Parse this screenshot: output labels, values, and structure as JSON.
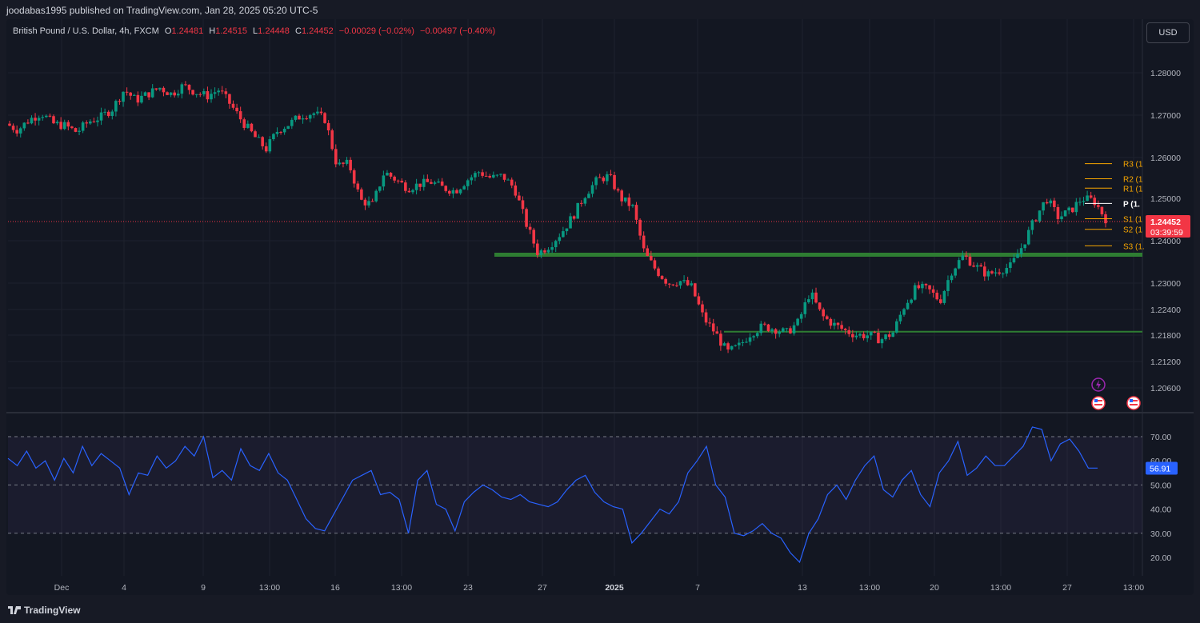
{
  "publisher": "joodabas1995 published on TradingView.com, Jan 28, 2025 05:20 UTC-5",
  "legend": {
    "symbol": "British Pound / U.S. Dollar, 4h, FXCM",
    "open_label": "O",
    "open": "1.24481",
    "high_label": "H",
    "high": "1.24515",
    "low_label": "L",
    "low": "1.24448",
    "close_label": "C",
    "close": "1.24452",
    "change": "−0.00029 (−0.02%)",
    "change2": "−0.00497 (−0.40%)"
  },
  "currency": "USD",
  "footer": {
    "brand": "TradingView"
  },
  "colors": {
    "up": "#089981",
    "down": "#f23645",
    "rsi": "#2962ff",
    "pivot": "#f7a600",
    "zone": "#2e7d32"
  },
  "chart_data": {
    "type": "candlestick",
    "price_axis": {
      "ticks": [
        "1.28000",
        "1.27000",
        "1.26000",
        "1.25000",
        "1.24000",
        "1.23000",
        "1.22400",
        "1.21800",
        "1.21200",
        "1.20600"
      ],
      "scale": "log-like"
    },
    "time_axis": {
      "ticks": [
        "Dec",
        "4",
        "9",
        "13:00",
        "16",
        "13:00",
        "23",
        "27",
        "2025",
        "7",
        "13",
        "13:00",
        "20",
        "13:00",
        "27",
        "13:00"
      ]
    },
    "last_price": "1.24452",
    "countdown": "03:39:59",
    "pivots": [
      {
        "label": "R3 (1",
        "price": 1.2585
      },
      {
        "label": "R2 (1",
        "price": 1.2548
      },
      {
        "label": "R1 (1",
        "price": 1.2525
      },
      {
        "label": "P (1.",
        "price": 1.2488
      },
      {
        "label": "S1 (1",
        "price": 1.2452
      },
      {
        "label": "S2 (1",
        "price": 1.2427
      },
      {
        "label": "S3 (1.",
        "price": 1.2388
      }
    ],
    "levels": [
      {
        "name": "support-zone",
        "price": 1.2367
      },
      {
        "name": "support-line",
        "price": 1.2188
      }
    ],
    "price_path": [
      [
        0,
        1.268
      ],
      [
        3,
        1.2665
      ],
      [
        6,
        1.269
      ],
      [
        9,
        1.2705
      ],
      [
        12,
        1.268
      ],
      [
        15,
        1.2675
      ],
      [
        18,
        1.266
      ],
      [
        21,
        1.2685
      ],
      [
        24,
        1.2695
      ],
      [
        27,
        1.2715
      ],
      [
        30,
        1.276
      ],
      [
        33,
        1.2735
      ],
      [
        36,
        1.275
      ],
      [
        39,
        1.2765
      ],
      [
        42,
        1.275
      ],
      [
        45,
        1.277
      ],
      [
        48,
        1.2755
      ],
      [
        51,
        1.2745
      ],
      [
        54,
        1.276
      ],
      [
        57,
        1.2725
      ],
      [
        60,
        1.2685
      ],
      [
        63,
        1.265
      ],
      [
        66,
        1.262
      ],
      [
        69,
        1.2665
      ],
      [
        72,
        1.268
      ],
      [
        75,
        1.27
      ],
      [
        78,
        1.2705
      ],
      [
        81,
        1.269
      ],
      [
        84,
        1.258
      ],
      [
        87,
        1.2585
      ],
      [
        90,
        1.2495
      ],
      [
        93,
        1.2485
      ],
      [
        96,
        1.2565
      ],
      [
        99,
        1.2545
      ],
      [
        102,
        1.2525
      ],
      [
        105,
        1.2535
      ],
      [
        108,
        1.254
      ],
      [
        111,
        1.2525
      ],
      [
        114,
        1.2518
      ],
      [
        117,
        1.2545
      ],
      [
        120,
        1.2565
      ],
      [
        123,
        1.255
      ],
      [
        126,
        1.2555
      ],
      [
        129,
        1.2525
      ],
      [
        132,
        1.244
      ],
      [
        135,
        1.237
      ],
      [
        138,
        1.239
      ],
      [
        141,
        1.242
      ],
      [
        144,
        1.246
      ],
      [
        147,
        1.251
      ],
      [
        150,
        1.2545
      ],
      [
        153,
        1.2555
      ],
      [
        156,
        1.25
      ],
      [
        159,
        1.248
      ],
      [
        162,
        1.237
      ],
      [
        165,
        1.233
      ],
      [
        168,
        1.23
      ],
      [
        171,
        1.2305
      ],
      [
        174,
        1.229
      ],
      [
        177,
        1.222
      ],
      [
        180,
        1.2185
      ],
      [
        183,
        1.214
      ],
      [
        186,
        1.2155
      ],
      [
        189,
        1.2185
      ],
      [
        192,
        1.22
      ],
      [
        195,
        1.2195
      ],
      [
        198,
        1.2185
      ],
      [
        201,
        1.221
      ],
      [
        204,
        1.228
      ],
      [
        207,
        1.2225
      ],
      [
        210,
        1.2205
      ],
      [
        213,
        1.219
      ],
      [
        216,
        1.218
      ],
      [
        219,
        1.218
      ],
      [
        222,
        1.217
      ],
      [
        225,
        1.2185
      ],
      [
        228,
        1.225
      ],
      [
        231,
        1.229
      ],
      [
        234,
        1.2285
      ],
      [
        237,
        1.226
      ],
      [
        240,
        1.233
      ],
      [
        243,
        1.2365
      ],
      [
        246,
        1.234
      ],
      [
        249,
        1.232
      ],
      [
        252,
        1.233
      ],
      [
        255,
        1.234
      ],
      [
        258,
        1.239
      ],
      [
        261,
        1.245
      ],
      [
        264,
        1.25
      ],
      [
        267,
        1.2455
      ],
      [
        270,
        1.247
      ],
      [
        273,
        1.25
      ],
      [
        276,
        1.2495
      ],
      [
        279,
        1.2452
      ]
    ],
    "rsi": {
      "ticks": [
        "70.00",
        "60.00",
        "50.00",
        "40.00",
        "30.00",
        "20.00"
      ],
      "upper": 70,
      "middle": 50,
      "lower": 30,
      "last": "56.91",
      "values": [
        61,
        58,
        64,
        57,
        60,
        52,
        61,
        55,
        66,
        58,
        63,
        60,
        57,
        46,
        55,
        54,
        62,
        57,
        60,
        66,
        62,
        70,
        53,
        56,
        52,
        65,
        58,
        56,
        63,
        55,
        52,
        44,
        36,
        32,
        31,
        38,
        45,
        52,
        54,
        56,
        46,
        47,
        44,
        30,
        52,
        56,
        42,
        40,
        31,
        43,
        47,
        50,
        48,
        45,
        44,
        46,
        43,
        42,
        41,
        43,
        48,
        52,
        54,
        47,
        43,
        41,
        40,
        26,
        30,
        35,
        40,
        38,
        43,
        55,
        60,
        66,
        50,
        45,
        30,
        29,
        31,
        34,
        30,
        28,
        22,
        18,
        30,
        36,
        46,
        50,
        44,
        52,
        58,
        62,
        48,
        45,
        52,
        56,
        46,
        41,
        55,
        60,
        68,
        54,
        57,
        62,
        58,
        58,
        62,
        66,
        74,
        73,
        60,
        67,
        69,
        64,
        57,
        57
      ]
    }
  }
}
